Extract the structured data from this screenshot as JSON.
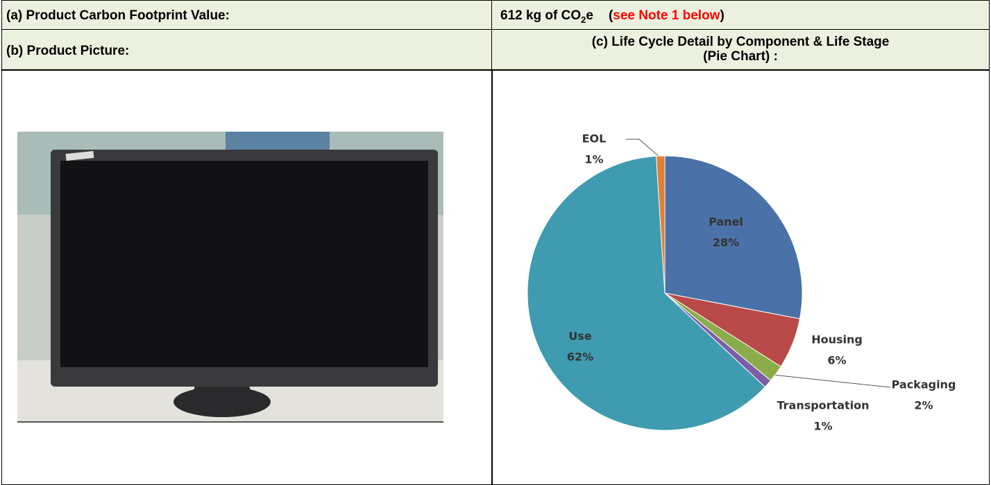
{
  "table": {
    "footprint_label": "(a) Product Carbon Footprint Value:",
    "footprint_value": "612 kg of CO",
    "footprint_sub": "2",
    "footprint_unit": "e",
    "note_open": "(",
    "note": "see Note 1 below",
    "note_close": ")",
    "picture_label": "(b) Product Picture:",
    "chart_label": [
      "(c) Life Cycle Detail by Component & Life Stage",
      "(Pie Chart) :"
    ]
  },
  "chart_data": {
    "type": "pie",
    "categories": [
      "Panel",
      "Housing",
      "Packaging",
      "Transportation",
      "Use",
      "EOL"
    ],
    "values": [
      28,
      6,
      2,
      1,
      62,
      1
    ],
    "value_labels": [
      "28%",
      "6%",
      "2%",
      "1%",
      "62%",
      "1%"
    ],
    "colors": [
      "#4a72a8",
      "#b94a48",
      "#8aac4a",
      "#7b5ea7",
      "#3f9bb0",
      "#e07f35"
    ]
  }
}
